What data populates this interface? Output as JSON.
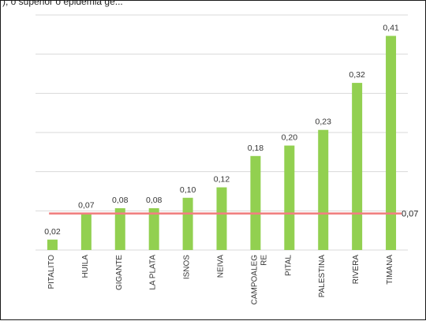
{
  "header": {
    "cropped_text": "), o superior ó epidemia ge..."
  },
  "chart_data": {
    "type": "bar",
    "categories": [
      "PITALITO",
      "HUILA",
      "GIGANTE",
      "LA PLATA",
      "ISNOS",
      "NEIVA",
      "CAMPOALEGRE",
      "PITAL",
      "PALESTINA",
      "RIVERA",
      "TIMANA"
    ],
    "category_labels": [
      [
        "PITALITO"
      ],
      [
        "HUILA"
      ],
      [
        "GIGANTE"
      ],
      [
        "LA PLATA"
      ],
      [
        "ISNOS"
      ],
      [
        "NEIVA"
      ],
      [
        "CAMPOALEG",
        "RE"
      ],
      [
        "PITAL"
      ],
      [
        "PALESTINA"
      ],
      [
        "RIVERA"
      ],
      [
        "TIMANA"
      ]
    ],
    "values": [
      0.02,
      0.07,
      0.08,
      0.08,
      0.1,
      0.12,
      0.18,
      0.2,
      0.23,
      0.32,
      0.41
    ],
    "value_labels": [
      "0,02",
      "0,07",
      "0,08",
      "0,08",
      "0,10",
      "0,12",
      "0,18",
      "0,20",
      "0,23",
      "0,32",
      "0,41"
    ],
    "reference_line": {
      "value": 0.07,
      "label": "0,07",
      "color": "#f08080"
    },
    "bar_color": "#92d050",
    "grid_color": "#d9d9d9",
    "ylim": [
      0,
      0.45
    ],
    "grid": true,
    "title": "",
    "xlabel": "",
    "ylabel": ""
  }
}
